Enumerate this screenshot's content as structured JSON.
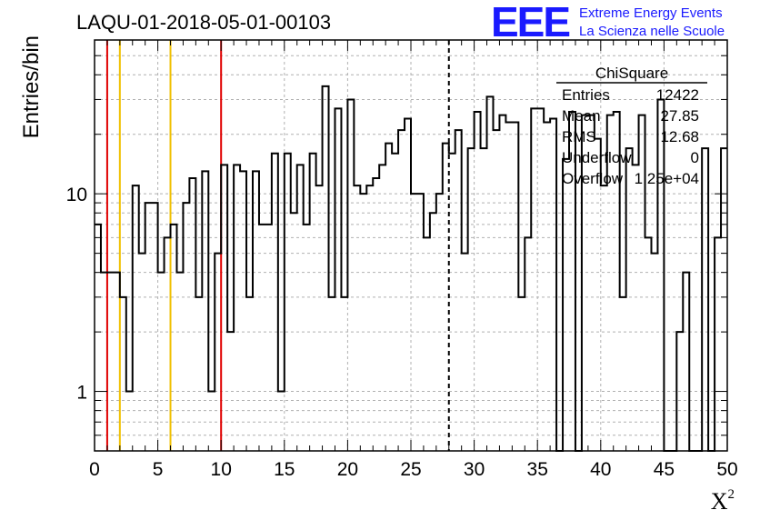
{
  "header": {
    "title": "LAQU-01-2018-05-01-00103",
    "logo_mark": "EEE",
    "logo_line1": "Extreme Energy Events",
    "logo_line2": "La Scienza nelle Scuole"
  },
  "colors": {
    "accent_red": "#e00000",
    "accent_yellow": "#f0c000",
    "logo_blue": "#1a1aff"
  },
  "chart_data": {
    "type": "bar",
    "subtype": "histogram-step",
    "xlabel": "X",
    "xlabel_superscript": "2",
    "ylabel": "Entries/bin",
    "xlim": [
      0,
      50
    ],
    "ylim": [
      0.5,
      60
    ],
    "yscale": "log",
    "grid": true,
    "x_ticks": [
      0,
      5,
      10,
      15,
      20,
      25,
      30,
      35,
      40,
      45,
      50
    ],
    "y_tick_labels": [
      1,
      10
    ],
    "bin_width": 0.5,
    "bin_start": 0,
    "values": [
      7,
      4,
      4,
      4,
      3,
      1,
      11,
      5,
      9,
      9,
      4,
      6,
      7,
      4,
      9,
      12,
      3,
      13,
      1,
      5,
      14,
      2,
      14,
      13,
      3,
      13,
      7,
      7,
      16,
      1,
      16,
      8,
      14,
      7,
      16,
      11,
      35,
      3,
      27,
      3,
      30,
      11,
      10,
      11,
      12,
      14,
      18,
      16,
      21,
      24,
      10,
      10,
      6,
      8,
      10,
      18,
      16,
      21,
      5,
      17,
      26,
      17,
      31,
      21,
      25,
      23,
      23,
      3,
      6,
      27,
      27,
      23,
      24,
      0,
      15,
      26,
      0,
      25,
      25,
      19,
      11,
      25,
      26,
      3,
      17,
      14,
      25,
      6,
      5,
      30,
      0,
      0,
      2,
      4,
      0,
      0,
      17,
      0,
      6,
      17
    ],
    "vlines": [
      {
        "x": 1,
        "color": "red"
      },
      {
        "x": 2,
        "color": "yellow"
      },
      {
        "x": 6,
        "color": "yellow"
      },
      {
        "x": 10,
        "color": "red"
      },
      {
        "x": 28,
        "color": "black-dashed"
      }
    ],
    "stats": {
      "name": "ChiSquare",
      "rows": [
        {
          "label": "Entries",
          "value": "12422"
        },
        {
          "label": "Mean",
          "value": "27.85"
        },
        {
          "label": "RMS",
          "value": "12.68"
        },
        {
          "label": "Underflow",
          "value": "0"
        },
        {
          "label": "Overflow",
          "value": "1.25e+04"
        }
      ]
    }
  }
}
